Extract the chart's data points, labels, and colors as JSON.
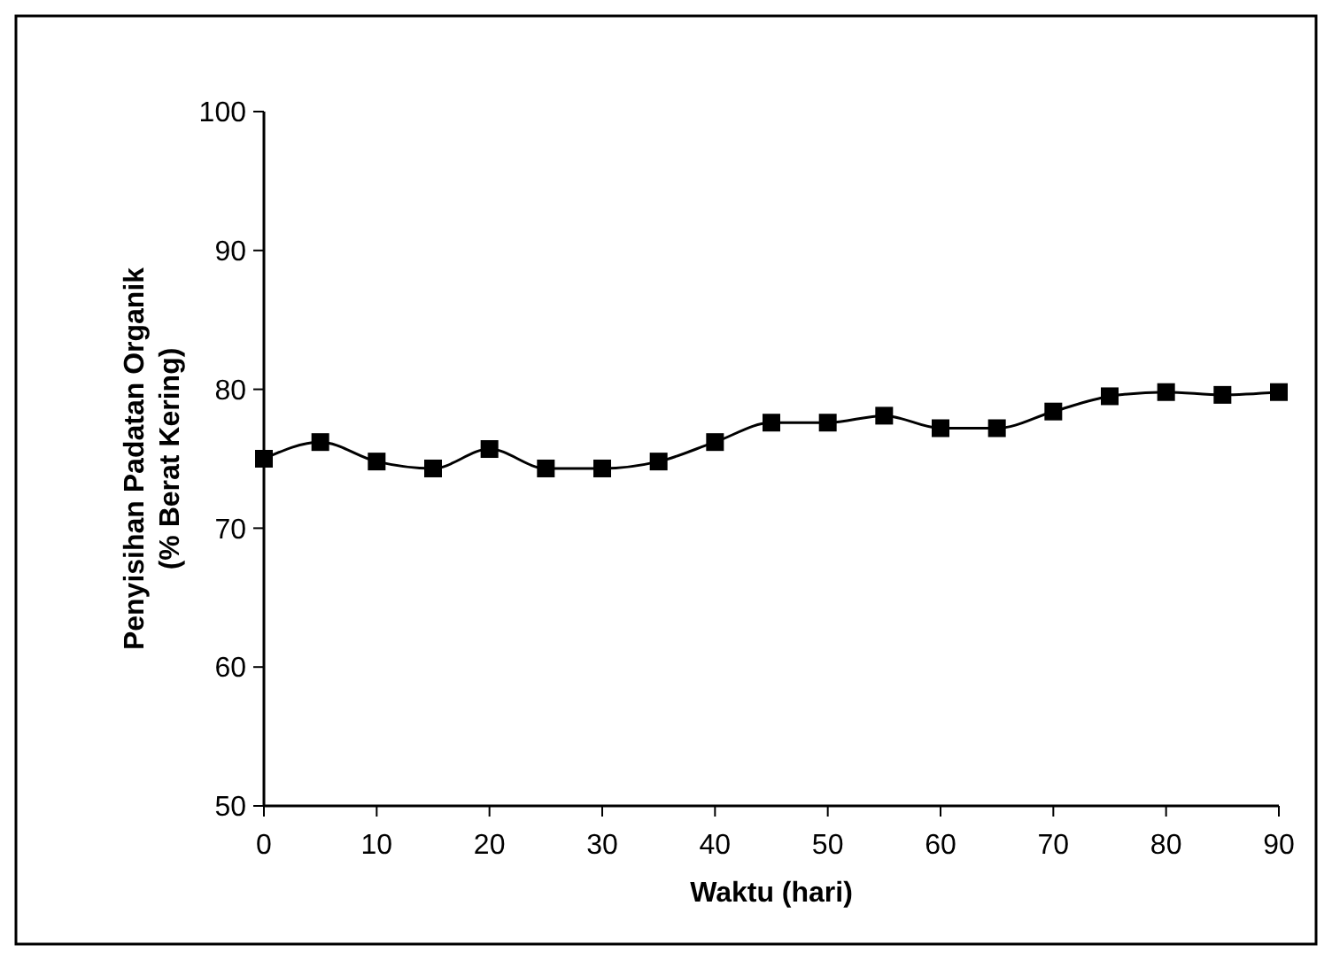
{
  "chart_data": {
    "type": "line",
    "xlabel": "Waktu (hari)",
    "ylabel": "Penyisihan Padatan Organik\n(% Berat Kering)",
    "x": [
      0,
      5,
      10,
      15,
      20,
      25,
      30,
      35,
      40,
      45,
      50,
      55,
      60,
      65,
      70,
      75,
      80,
      85,
      90
    ],
    "series": [
      {
        "color": "#000000",
        "values": [
          75.0,
          76.2,
          74.8,
          74.3,
          75.7,
          74.3,
          74.3,
          74.8,
          76.2,
          77.6,
          77.6,
          78.1,
          77.2,
          77.2,
          78.4,
          79.5,
          79.8,
          79.6,
          79.8
        ]
      }
    ],
    "xlim": [
      0,
      90
    ],
    "xticks": [
      0,
      10,
      20,
      30,
      40,
      50,
      60,
      70,
      80,
      90
    ],
    "ylim": [
      50,
      100
    ],
    "yticks": [
      50,
      60,
      70,
      80,
      90,
      100
    ],
    "marker": "square",
    "line_style": "solid"
  }
}
